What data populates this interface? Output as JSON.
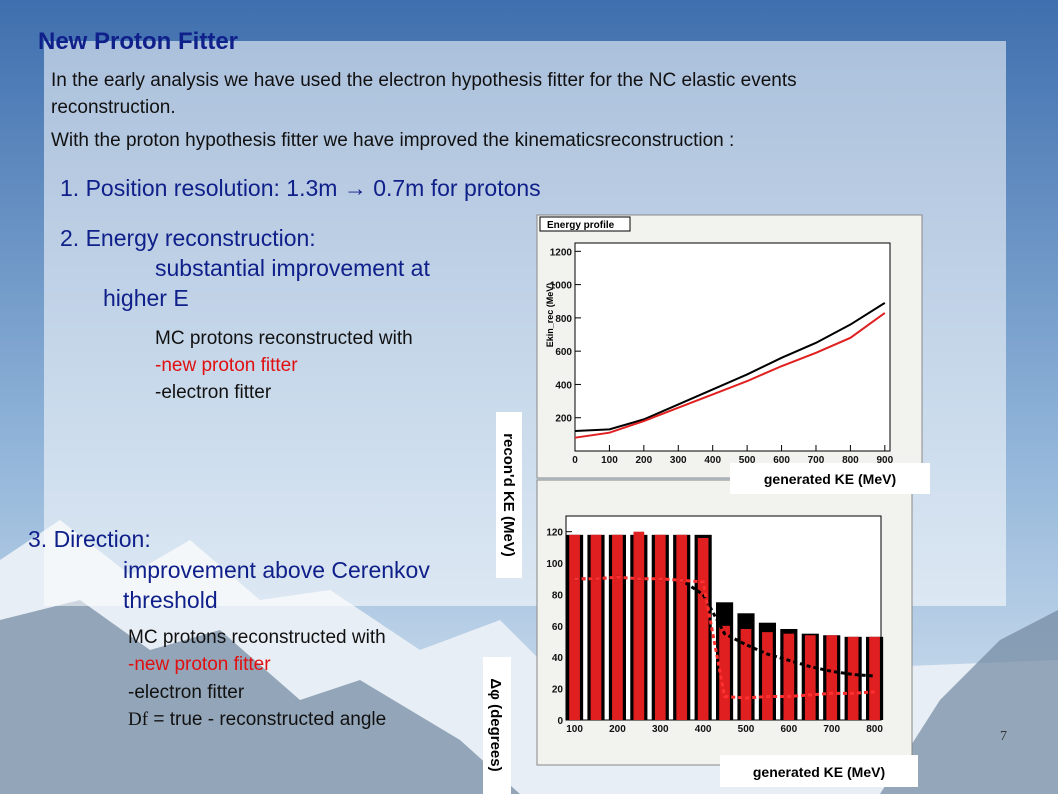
{
  "title": "New Proton Fitter",
  "intro": [
    "In the early analysis we have used the electron hypothesis fitter for the NC elastic events",
    "reconstruction.",
    "With the proton hypothesis fitter we have improved the kinematicsreconstruction :"
  ],
  "item1": "1. Position resolution: 1.3m → 0.7m for protons",
  "item2": {
    "heading": "2. Energy reconstruction:",
    "lines": [
      "substantial improvement at",
      "higher E"
    ],
    "notes": [
      "MC protons reconstructed with",
      "-new proton fitter",
      "-electron fitter"
    ]
  },
  "item3": {
    "heading": "3. Direction:",
    "lines": [
      "improvement above Cerenkov",
      "threshold"
    ],
    "notes": [
      "MC protons reconstructed with",
      "-new proton fitter",
      "-electron fitter"
    ],
    "symbol": "Df",
    "definition": " = true - reconstructed angle"
  },
  "page_number": "7",
  "plots": [
    {
      "type": "line",
      "title": "Energy profile",
      "y_label": "Ekin_rec (MeV)",
      "x_label": "generated KE (MeV)",
      "side_label": "recon'd KE (MeV)",
      "xlim": [
        0,
        915
      ],
      "ylim": [
        0,
        1250
      ],
      "xticks": [
        0,
        100,
        200,
        300,
        400,
        500,
        600,
        700,
        800,
        900
      ],
      "yticks": [
        200,
        400,
        600,
        800,
        1000,
        1200
      ],
      "x": [
        0,
        100,
        200,
        300,
        400,
        500,
        600,
        700,
        800,
        900
      ],
      "series": [
        {
          "color": "#000000",
          "values": [
            120,
            130,
            190,
            280,
            370,
            460,
            560,
            650,
            760,
            890
          ]
        },
        {
          "color": "#e02020",
          "values": [
            80,
            110,
            180,
            260,
            340,
            420,
            510,
            590,
            680,
            830
          ]
        }
      ]
    },
    {
      "type": "bar",
      "marker": "D",
      "x_label": "generated KE (MeV)",
      "side_label": "Δφ (degrees)",
      "xlim": [
        80,
        815
      ],
      "ylim": [
        0,
        130
      ],
      "xticks": [
        100,
        200,
        300,
        400,
        500,
        600,
        700,
        800
      ],
      "yticks": [
        0,
        20,
        40,
        60,
        80,
        100,
        120
      ],
      "x": [
        100,
        150,
        200,
        250,
        300,
        350,
        400,
        450,
        500,
        550,
        600,
        650,
        700,
        750,
        800
      ],
      "series": [
        {
          "color": "#000000",
          "values": [
            118,
            118,
            118,
            118,
            118,
            118,
            118,
            75,
            68,
            62,
            58,
            55,
            54,
            53,
            53
          ],
          "means": [
            90,
            90,
            91,
            90,
            90,
            89,
            80,
            55,
            48,
            42,
            38,
            34,
            31,
            29,
            28
          ]
        },
        {
          "color": "#e02020",
          "values": [
            118,
            118,
            118,
            120,
            118,
            118,
            116,
            60,
            58,
            56,
            55,
            54,
            54,
            53,
            53
          ],
          "means": [
            90,
            90,
            91,
            90,
            90,
            89,
            88,
            15,
            14,
            15,
            15,
            16,
            17,
            17,
            18
          ]
        }
      ]
    }
  ]
}
